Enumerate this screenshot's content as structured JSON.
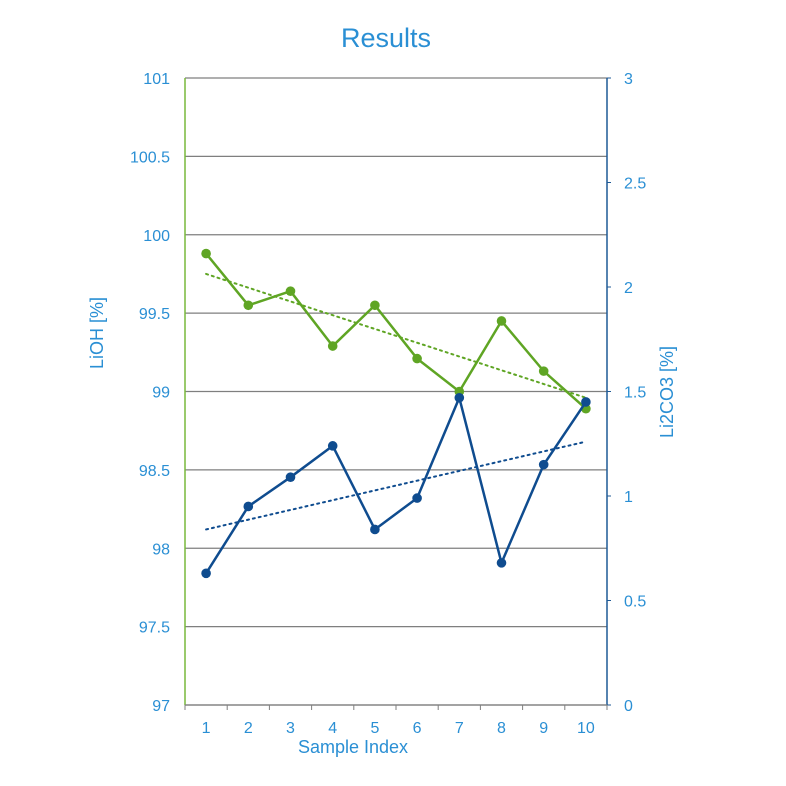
{
  "chart_data": {
    "type": "line",
    "title": "Results",
    "xlabel": "Sample Index",
    "ylabel_left": "LiOH [%]",
    "ylabel_right": "Li2CO3 [%]",
    "categories": [
      "1",
      "2",
      "3",
      "4",
      "5",
      "6",
      "7",
      "8",
      "9",
      "10"
    ],
    "ylim_left": [
      97,
      101
    ],
    "ylim_right": [
      0,
      3
    ],
    "yticks_left": [
      "101",
      "100.5",
      "100",
      "99.5",
      "99",
      "98.5",
      "98",
      "97.5",
      "97"
    ],
    "yticks_right": [
      "3",
      "2.5",
      "2",
      "1.5",
      "1",
      "0.5",
      "0"
    ],
    "grid": true,
    "series": [
      {
        "axis": "left",
        "color": "#5fa524",
        "values": [
          99.88,
          99.55,
          99.64,
          99.29,
          99.55,
          99.21,
          99.0,
          99.45,
          99.13,
          98.89
        ],
        "trendline": {
          "style": "dotted",
          "start": 99.75,
          "end": 98.96
        }
      },
      {
        "axis": "right",
        "color": "#0f4c8f",
        "values": [
          0.63,
          0.95,
          1.09,
          1.24,
          0.84,
          0.99,
          1.47,
          0.68,
          1.15,
          1.45
        ],
        "trendline": {
          "style": "dotted",
          "start": 0.84,
          "end": 1.26
        }
      }
    ],
    "colors": {
      "text": "#2a8fd4",
      "grid": "#7f7f7f",
      "left_axis": "#78b83c",
      "right_axis": "#1f5a96"
    }
  }
}
